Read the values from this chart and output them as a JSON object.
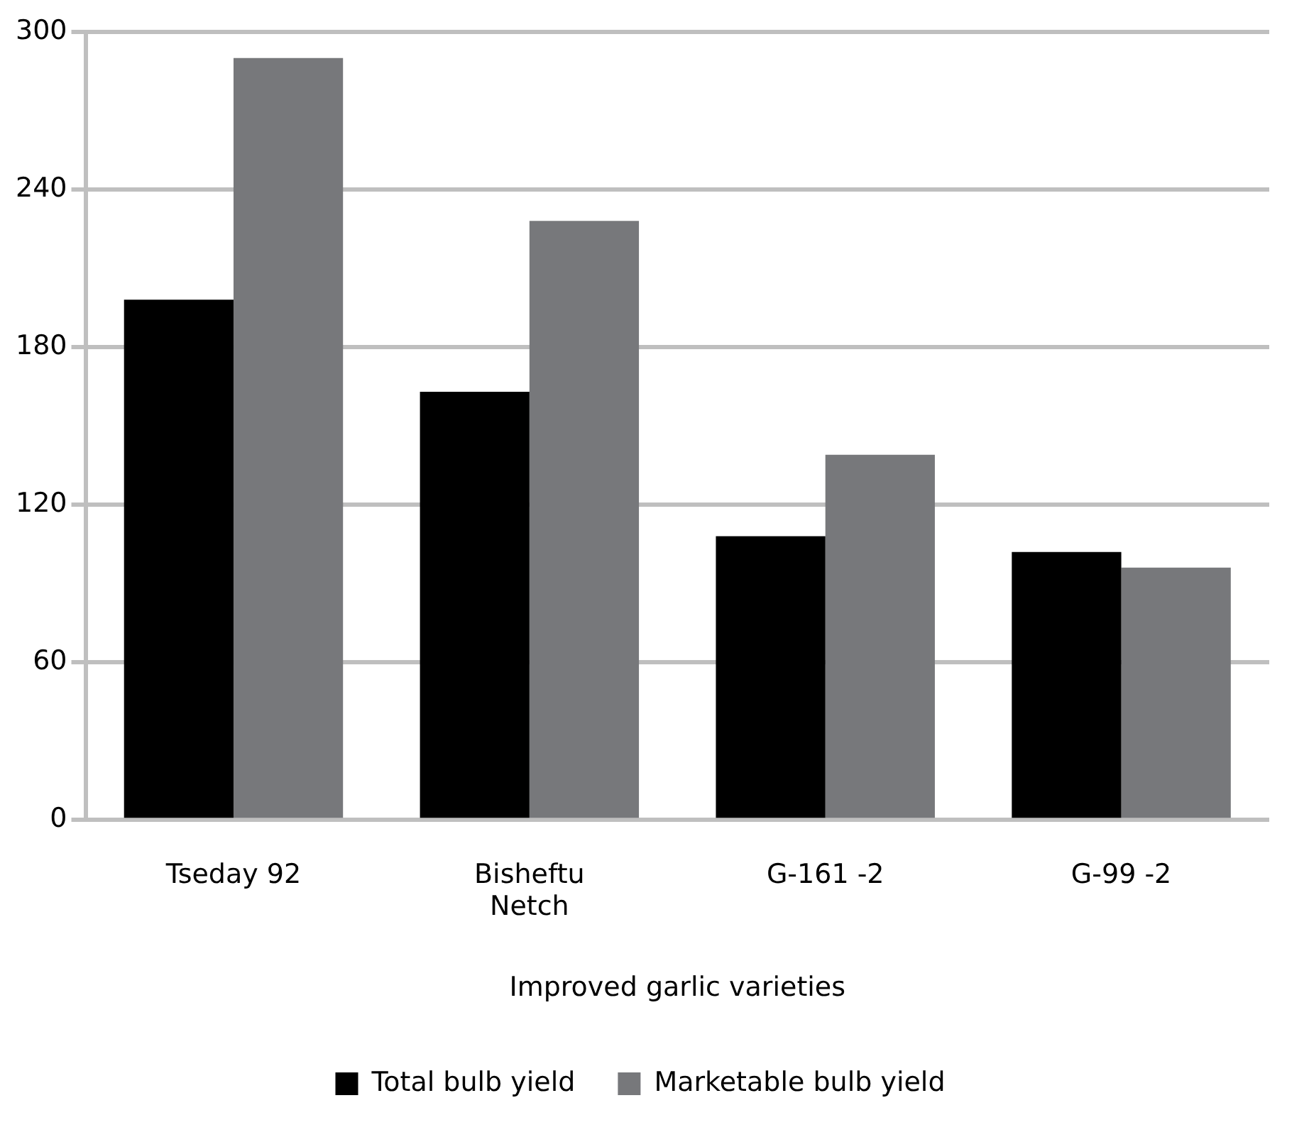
{
  "chart_data": {
    "type": "bar",
    "xlabel": "Improved garlic varieties",
    "categories": [
      "Tseday 92",
      "Bisheftu Netch",
      "G-161 -2",
      "G-99 -2"
    ],
    "series": [
      {
        "name": "Total bulb yield",
        "color": "#000000",
        "values": [
          198,
          163,
          108,
          102
        ]
      },
      {
        "name": "Marketable bulb yield",
        "color": "#77787b",
        "values": [
          290,
          228,
          139,
          96
        ]
      }
    ],
    "ylim": [
      0,
      300
    ],
    "yticks": [
      0,
      60,
      120,
      180,
      240,
      300
    ],
    "grid": "y",
    "legend": "bottom"
  }
}
